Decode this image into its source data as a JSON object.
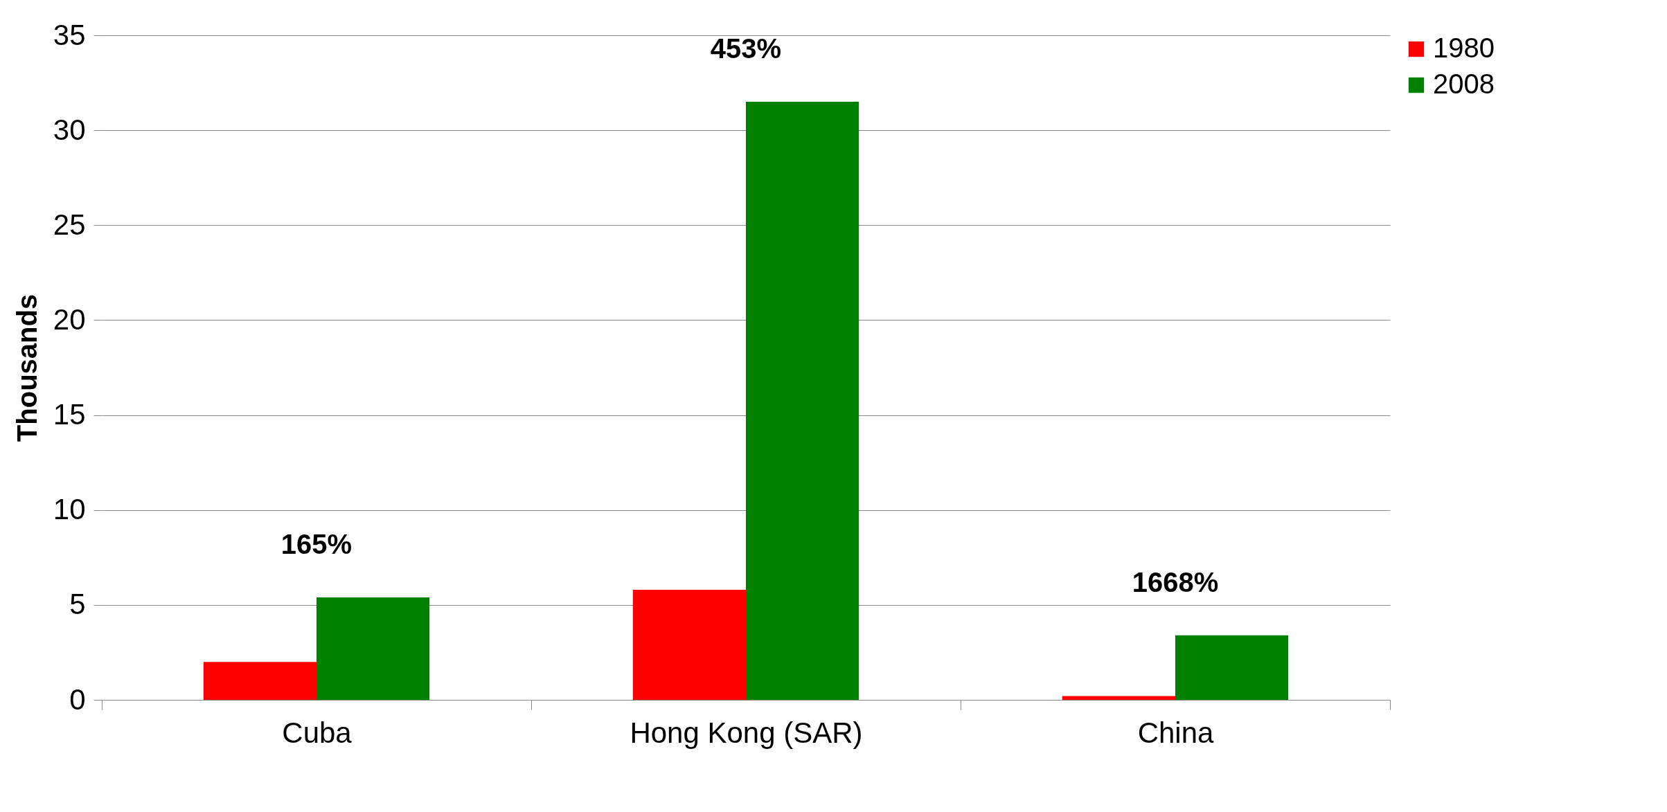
{
  "chart_data": {
    "type": "bar",
    "ylabel": "Thousands",
    "categories": [
      "Cuba",
      "Hong Kong (SAR)",
      "China"
    ],
    "series": [
      {
        "name": "1980",
        "color": "#ff0000",
        "values": [
          2.0,
          5.8,
          0.2
        ]
      },
      {
        "name": "2008",
        "color": "#008000",
        "values": [
          5.4,
          31.5,
          3.4
        ]
      }
    ],
    "ylim": [
      0,
      35
    ],
    "yticks": [
      0,
      5,
      10,
      15,
      20,
      25,
      30,
      35
    ],
    "grid": "y",
    "legend": "right",
    "annotations": [
      "165%",
      "453%",
      "1668%"
    ]
  }
}
